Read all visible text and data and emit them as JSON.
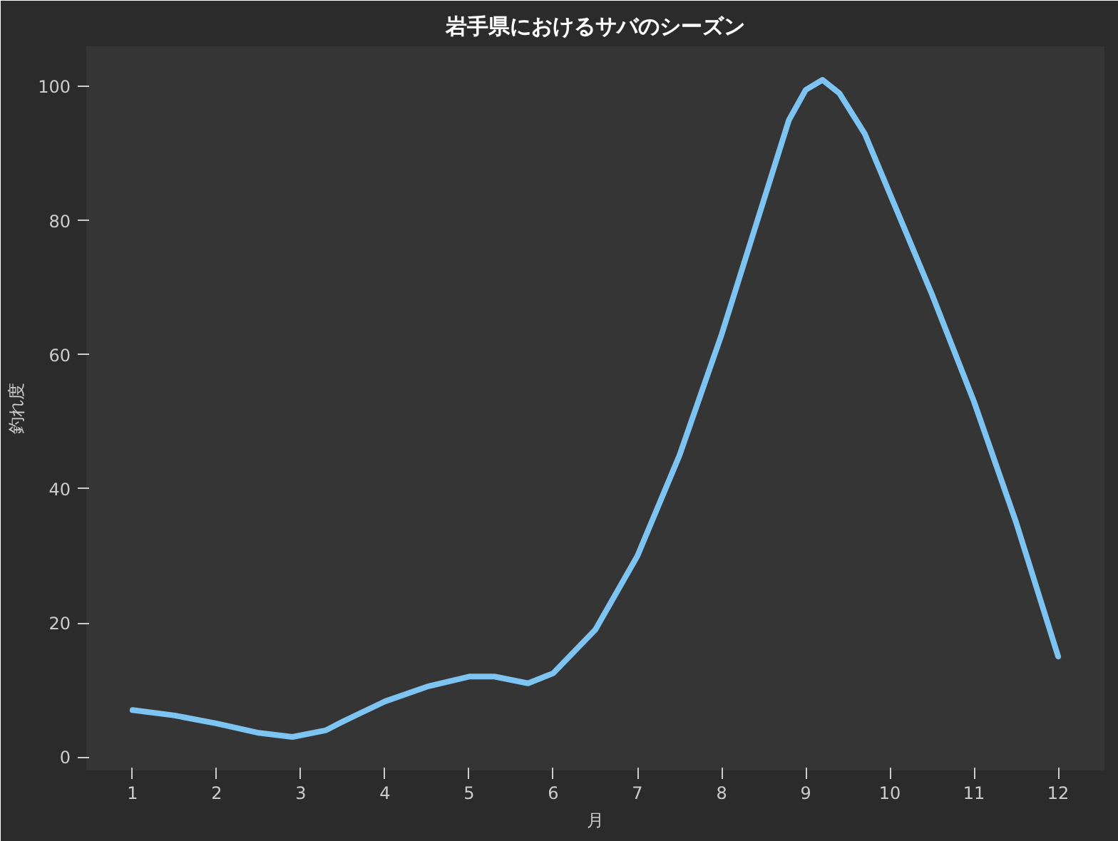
{
  "chart_data": {
    "type": "line",
    "title": "岩手県におけるサバのシーズン",
    "xlabel": "月",
    "ylabel": "釣れ度",
    "series": [
      {
        "color": "#7ec4f2",
        "x": [
          1,
          1.5,
          2,
          2.5,
          2.9,
          3.3,
          3.5,
          4,
          4.5,
          5,
          5.3,
          5.7,
          6,
          6.5,
          7,
          7.5,
          8,
          8.5,
          8.8,
          9,
          9.2,
          9.4,
          9.7,
          10,
          10.5,
          11,
          11.5,
          12
        ],
        "values": [
          7,
          6.2,
          5,
          3.6,
          3,
          4,
          5.3,
          8.3,
          10.5,
          12,
          12,
          11,
          12.5,
          19,
          30,
          45,
          63,
          83,
          95,
          99.5,
          101,
          99,
          93,
          84,
          69,
          53,
          35,
          15
        ]
      }
    ],
    "xlim": [
      0.45,
      12.55
    ],
    "ylim": [
      -2,
      106
    ],
    "xticks": [
      1,
      2,
      3,
      4,
      5,
      6,
      7,
      8,
      9,
      10,
      11,
      12
    ],
    "yticks": [
      0,
      20,
      40,
      60,
      80,
      100
    ],
    "grid": false,
    "marker": "none",
    "line_style": "solid"
  }
}
